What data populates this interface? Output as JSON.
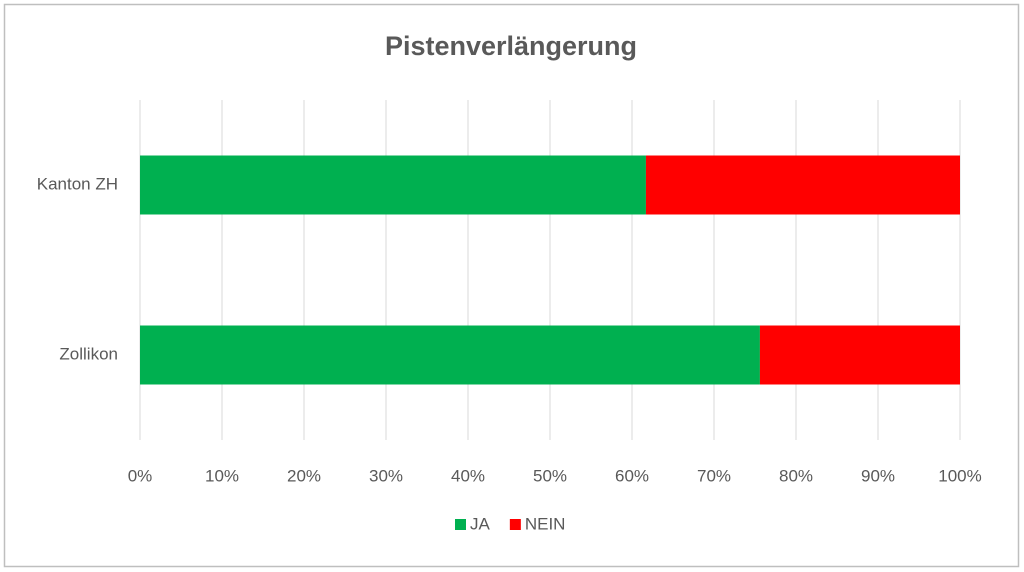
{
  "chart_data": {
    "type": "bar",
    "orientation": "horizontal",
    "stacked": true,
    "title": "Pistenverlängerung",
    "categories": [
      "Kanton ZH",
      "Zollikon"
    ],
    "series": [
      {
        "name": "JA",
        "color": "#00b050",
        "values": [
          61.7,
          75.6
        ]
      },
      {
        "name": "NEIN",
        "color": "#ff0000",
        "values": [
          38.3,
          24.4
        ]
      }
    ],
    "xlim": [
      0,
      100
    ],
    "xticks": [
      {
        "value": 0,
        "label": "0%"
      },
      {
        "value": 10,
        "label": "10%"
      },
      {
        "value": 20,
        "label": "20%"
      },
      {
        "value": 30,
        "label": "30%"
      },
      {
        "value": 40,
        "label": "40%"
      },
      {
        "value": 50,
        "label": "50%"
      },
      {
        "value": 60,
        "label": "60%"
      },
      {
        "value": 70,
        "label": "70%"
      },
      {
        "value": 80,
        "label": "80%"
      },
      {
        "value": 90,
        "label": "90%"
      },
      {
        "value": 100,
        "label": "100%"
      }
    ],
    "grid": true,
    "legend": "bottom"
  }
}
